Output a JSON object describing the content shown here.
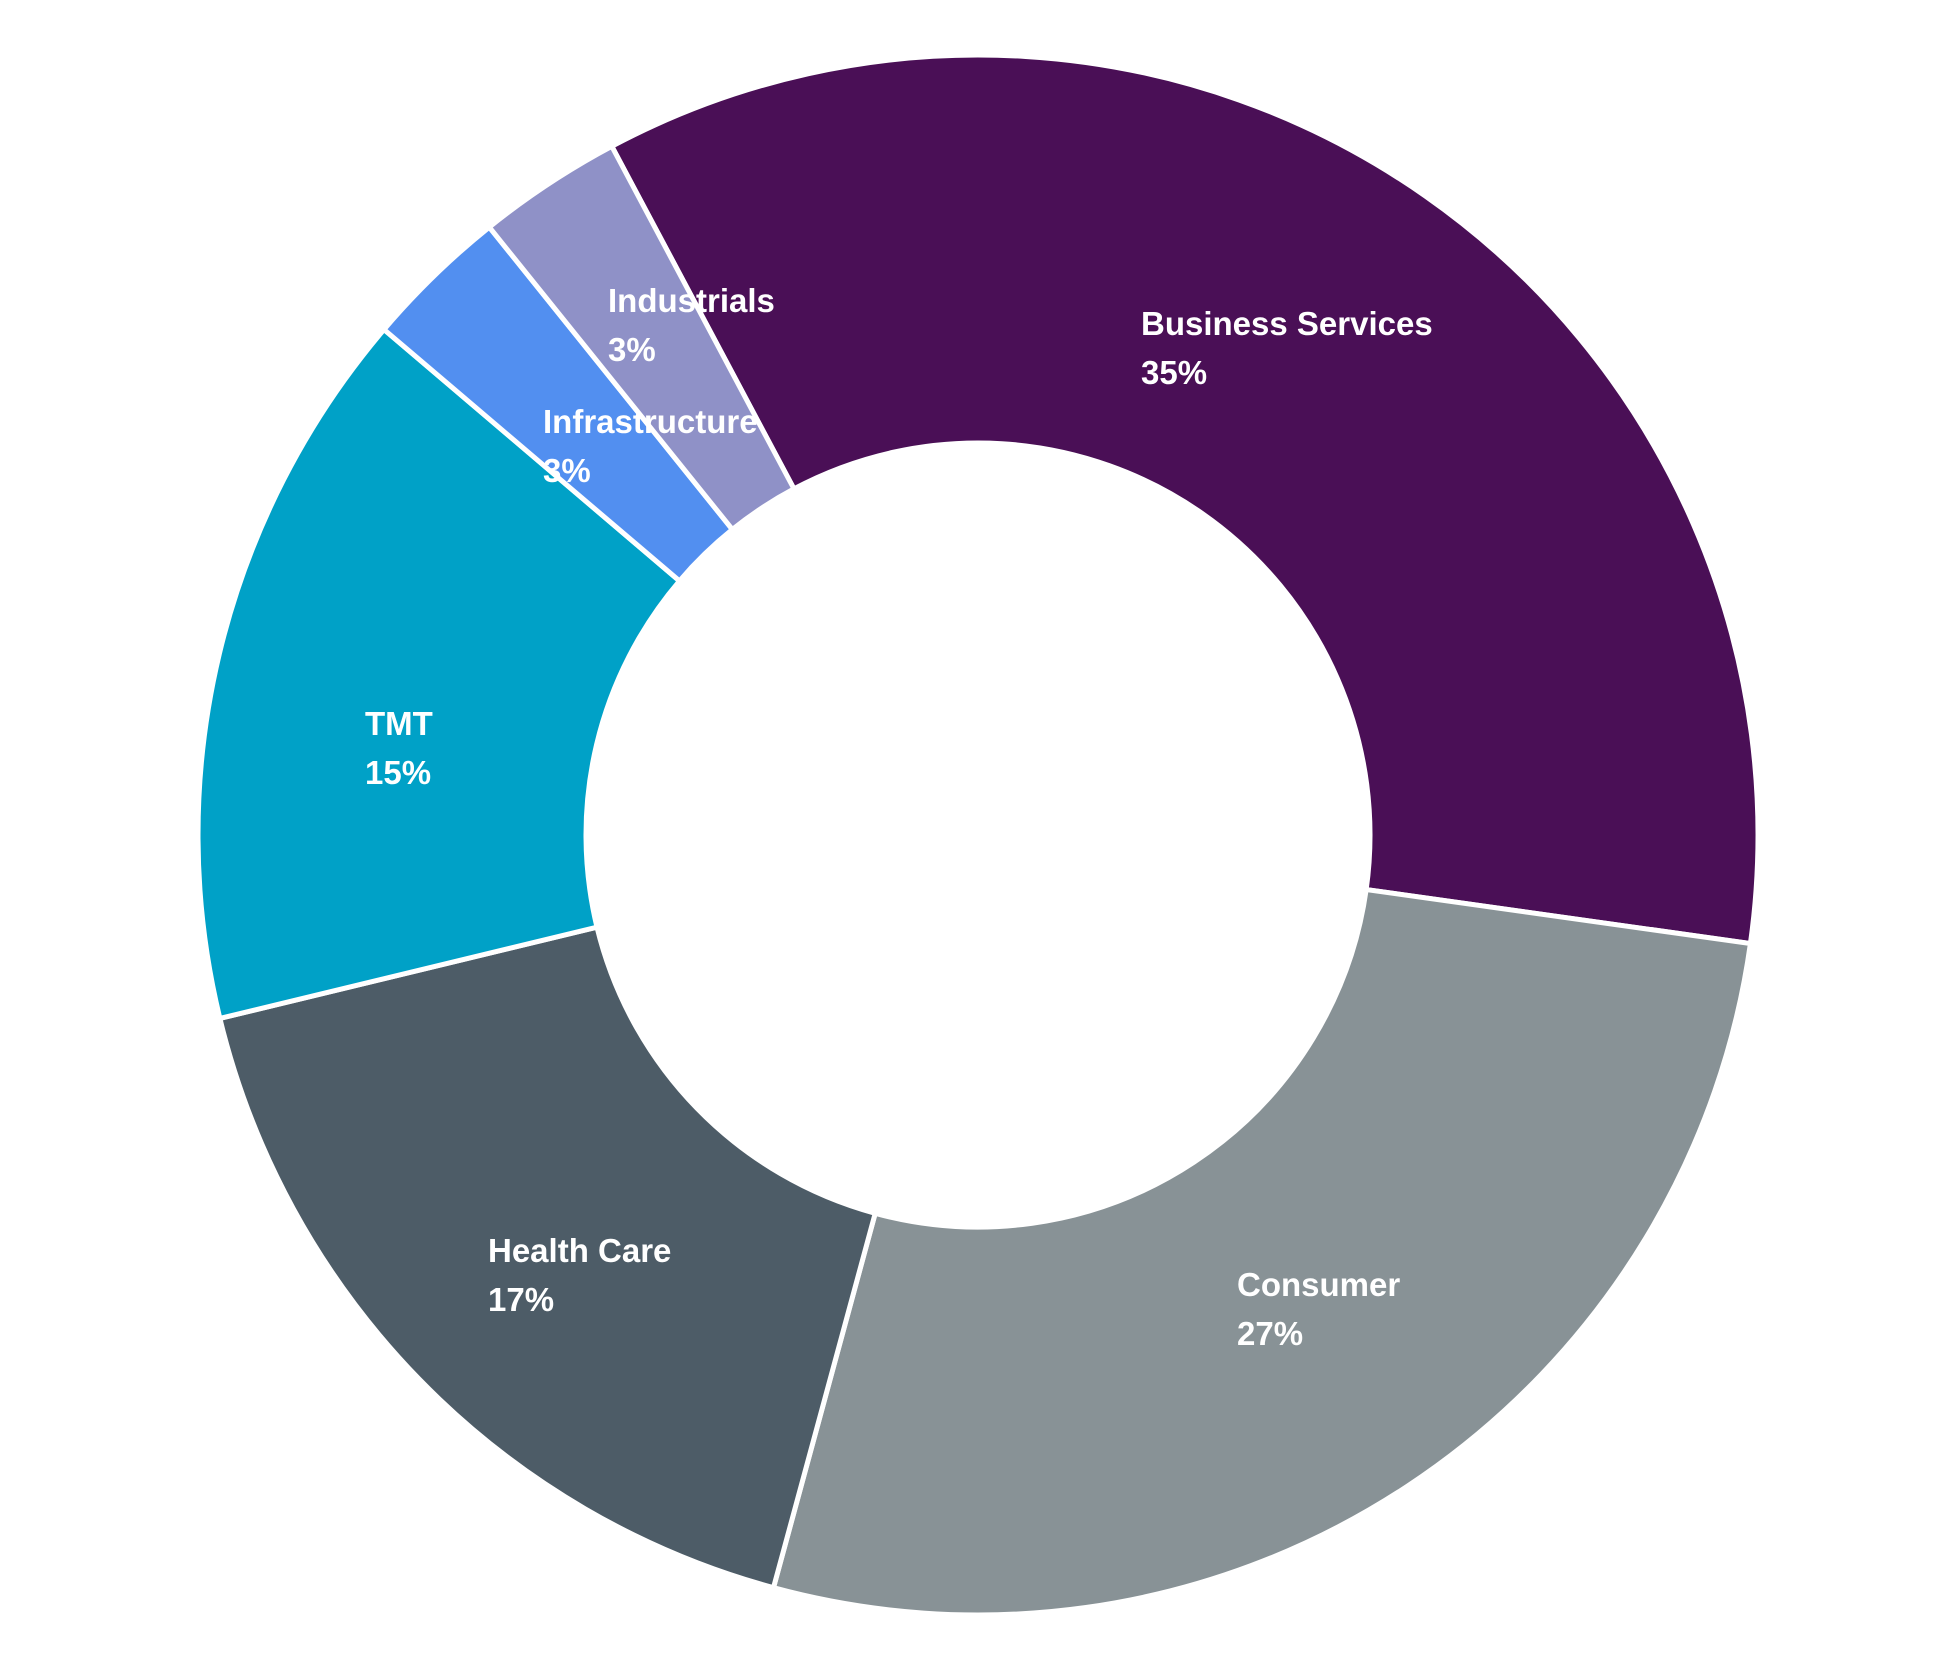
{
  "chart_data": {
    "type": "pie",
    "variant": "donut",
    "title": "",
    "start_angle_deg": -28,
    "direction": "clockwise",
    "slices": [
      {
        "label": "Business Services",
        "value_label": "35%",
        "value": 35,
        "color": "#4a0f56"
      },
      {
        "label": "Consumer",
        "value_label": "27%",
        "value": 27,
        "color": "#889296"
      },
      {
        "label": "Health Care",
        "value_label": "17%",
        "value": 17,
        "color": "#4d5c67"
      },
      {
        "label": "TMT",
        "value_label": "15%",
        "value": 15,
        "color": "#00a1c7"
      },
      {
        "label": "Infrastructure",
        "value_label": "3%",
        "value": 3,
        "color": "#528ff0"
      },
      {
        "label": "Industrials",
        "value_label": "3%",
        "value": 3,
        "color": "#8f91c7"
      }
    ],
    "background": "#ffffff"
  }
}
